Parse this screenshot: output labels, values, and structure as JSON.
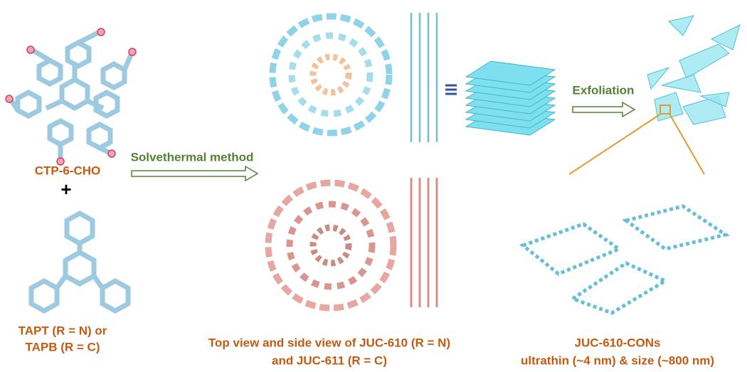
{
  "reactants": {
    "aldehyde": "CTP-6-CHO",
    "plus": "+",
    "amine": [
      "TAPT (R = N) or",
      "TAPB (R = C)"
    ]
  },
  "arrows": {
    "synthesis": "Solvethermal method",
    "exfoliation": "Exfoliation"
  },
  "captions": {
    "framework": [
      "Top view and side view of JUC-610 (R = N)",
      "and JUC-611 (R = C)"
    ],
    "nanosheets": [
      "JUC-610-CONs",
      "ultrathin (~4 nm) & size (~800 nm)"
    ]
  }
}
